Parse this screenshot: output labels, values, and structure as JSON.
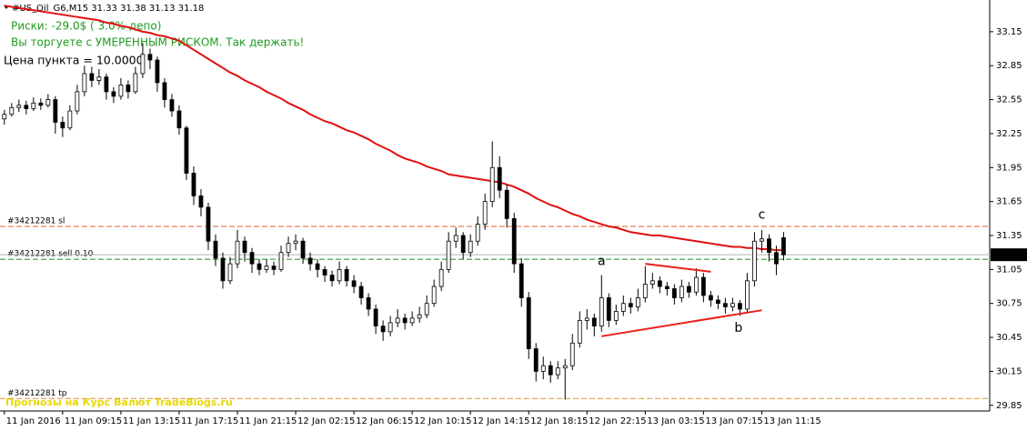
{
  "chart_data": {
    "type": "candlestick",
    "title": "#US_Oil_G6,M15  31.33 31.38 31.13 31.18",
    "risk_text": "Риски: -29.0$ ( 3.0% депо)",
    "risk_message": "Вы торгуете с УМЕРЕННЫМ РИСКОМ. Так держать!",
    "point_value_text": "Цена пункта = 10.0000",
    "watermark": "Прогнозы на Курс Валют TradeBlogs.ru",
    "ylim": [
      29.8,
      33.43
    ],
    "yticks": [
      33.15,
      32.85,
      32.55,
      32.25,
      31.95,
      31.65,
      31.35,
      31.05,
      30.75,
      30.45,
      30.15,
      29.85
    ],
    "xlim": [
      -0.6,
      135.3
    ],
    "xticks": [
      {
        "value": 0,
        "label": "11 Jan 2016"
      },
      {
        "value": 8,
        "label": "11 Jan 09:15"
      },
      {
        "value": 16,
        "label": "11 Jan 13:15"
      },
      {
        "value": 24,
        "label": "11 Jan 17:15"
      },
      {
        "value": 32,
        "label": "11 Jan 21:15"
      },
      {
        "value": 40,
        "label": "12 Jan 02:15"
      },
      {
        "value": 48,
        "label": "12 Jan 06:15"
      },
      {
        "value": 56,
        "label": "12 Jan 10:15"
      },
      {
        "value": 64,
        "label": "12 Jan 14:15"
      },
      {
        "value": 72,
        "label": "12 Jan 18:15"
      },
      {
        "value": 80,
        "label": "12 Jan 22:15"
      },
      {
        "value": 88,
        "label": "13 Jan 03:15"
      },
      {
        "value": 96,
        "label": "13 Jan 07:15"
      },
      {
        "value": 104,
        "label": "13 Jan 11:15"
      }
    ],
    "candles": [
      [
        32.38,
        32.46,
        32.33,
        32.42
      ],
      [
        32.42,
        32.52,
        32.4,
        32.48
      ],
      [
        32.48,
        32.55,
        32.44,
        32.5
      ],
      [
        32.5,
        32.54,
        32.42,
        32.47
      ],
      [
        32.47,
        32.57,
        32.45,
        32.52
      ],
      [
        32.52,
        32.56,
        32.46,
        32.5
      ],
      [
        32.5,
        32.6,
        32.48,
        32.55
      ],
      [
        32.55,
        32.58,
        32.25,
        32.35
      ],
      [
        32.35,
        32.4,
        32.22,
        32.3
      ],
      [
        32.3,
        32.5,
        32.28,
        32.45
      ],
      [
        32.45,
        32.68,
        32.42,
        32.62
      ],
      [
        32.62,
        32.85,
        32.58,
        32.78
      ],
      [
        32.78,
        32.84,
        32.66,
        32.72
      ],
      [
        32.72,
        32.82,
        32.68,
        32.75
      ],
      [
        32.75,
        32.78,
        32.55,
        32.62
      ],
      [
        32.62,
        32.66,
        32.52,
        32.58
      ],
      [
        32.58,
        32.74,
        32.55,
        32.68
      ],
      [
        32.68,
        32.72,
        32.56,
        32.62
      ],
      [
        32.62,
        32.84,
        32.6,
        32.78
      ],
      [
        32.78,
        33.05,
        32.74,
        32.95
      ],
      [
        32.95,
        33.0,
        32.82,
        32.9
      ],
      [
        32.9,
        32.93,
        32.62,
        32.7
      ],
      [
        32.7,
        32.74,
        32.48,
        32.55
      ],
      [
        32.55,
        32.6,
        32.4,
        32.45
      ],
      [
        32.45,
        32.5,
        32.24,
        32.3
      ],
      [
        32.3,
        32.32,
        31.84,
        31.9
      ],
      [
        31.9,
        31.96,
        31.62,
        31.7
      ],
      [
        31.7,
        31.76,
        31.52,
        31.6
      ],
      [
        31.6,
        31.64,
        31.22,
        31.3
      ],
      [
        31.3,
        31.36,
        31.08,
        31.15
      ],
      [
        31.15,
        31.2,
        30.88,
        30.95
      ],
      [
        30.95,
        31.16,
        30.92,
        31.1
      ],
      [
        31.1,
        31.4,
        31.06,
        31.3
      ],
      [
        31.3,
        31.34,
        31.12,
        31.2
      ],
      [
        31.2,
        31.24,
        31.02,
        31.1
      ],
      [
        31.1,
        31.14,
        31.0,
        31.05
      ],
      [
        31.05,
        31.14,
        31.02,
        31.08
      ],
      [
        31.08,
        31.12,
        31.0,
        31.05
      ],
      [
        31.05,
        31.26,
        31.03,
        31.2
      ],
      [
        31.2,
        31.34,
        31.16,
        31.28
      ],
      [
        31.28,
        31.36,
        31.22,
        31.3
      ],
      [
        31.3,
        31.33,
        31.1,
        31.15
      ],
      [
        31.15,
        31.2,
        31.04,
        31.1
      ],
      [
        31.1,
        31.14,
        30.98,
        31.05
      ],
      [
        31.05,
        31.08,
        30.94,
        31.0
      ],
      [
        31.0,
        31.04,
        30.9,
        30.95
      ],
      [
        30.95,
        31.12,
        30.92,
        31.05
      ],
      [
        31.05,
        31.08,
        30.9,
        30.95
      ],
      [
        30.95,
        31.0,
        30.84,
        30.9
      ],
      [
        30.9,
        30.94,
        30.74,
        30.8
      ],
      [
        30.8,
        30.84,
        30.64,
        30.7
      ],
      [
        30.7,
        30.74,
        30.48,
        30.55
      ],
      [
        30.55,
        30.6,
        30.42,
        30.5
      ],
      [
        30.5,
        30.64,
        30.46,
        30.58
      ],
      [
        30.58,
        30.7,
        30.54,
        30.62
      ],
      [
        30.62,
        30.66,
        30.52,
        30.58
      ],
      [
        30.58,
        30.68,
        30.55,
        30.62
      ],
      [
        30.62,
        30.72,
        30.58,
        30.65
      ],
      [
        30.65,
        30.82,
        30.62,
        30.75
      ],
      [
        30.75,
        30.96,
        30.72,
        30.9
      ],
      [
        30.9,
        31.12,
        30.86,
        31.05
      ],
      [
        31.05,
        31.38,
        31.02,
        31.3
      ],
      [
        31.3,
        31.42,
        31.24,
        31.35
      ],
      [
        31.35,
        31.38,
        31.14,
        31.2
      ],
      [
        31.2,
        31.36,
        31.16,
        31.3
      ],
      [
        31.3,
        31.52,
        31.26,
        31.45
      ],
      [
        31.45,
        31.72,
        31.4,
        31.65
      ],
      [
        31.65,
        32.18,
        31.6,
        31.95
      ],
      [
        31.95,
        32.05,
        31.68,
        31.75
      ],
      [
        31.75,
        31.8,
        31.42,
        31.5
      ],
      [
        31.5,
        31.55,
        31.02,
        31.1
      ],
      [
        31.1,
        31.15,
        30.72,
        30.8
      ],
      [
        30.8,
        30.85,
        30.26,
        30.35
      ],
      [
        30.35,
        30.4,
        30.06,
        30.15
      ],
      [
        30.15,
        30.28,
        30.08,
        30.2
      ],
      [
        30.2,
        30.24,
        30.05,
        30.12
      ],
      [
        30.12,
        30.24,
        30.08,
        30.18
      ],
      [
        30.18,
        30.26,
        29.9,
        30.2
      ],
      [
        30.2,
        30.48,
        30.16,
        30.4
      ],
      [
        30.4,
        30.68,
        30.36,
        30.6
      ],
      [
        30.6,
        30.7,
        30.52,
        30.62
      ],
      [
        30.62,
        30.66,
        30.46,
        30.55
      ],
      [
        30.55,
        31.0,
        30.5,
        30.8
      ],
      [
        30.8,
        30.84,
        30.54,
        30.6
      ],
      [
        30.6,
        30.74,
        30.56,
        30.68
      ],
      [
        30.68,
        30.82,
        30.64,
        30.75
      ],
      [
        30.75,
        30.8,
        30.66,
        30.72
      ],
      [
        30.72,
        30.88,
        30.68,
        30.8
      ],
      [
        30.8,
        31.08,
        30.76,
        30.92
      ],
      [
        30.92,
        31.02,
        30.88,
        30.95
      ],
      [
        30.95,
        30.99,
        30.84,
        30.9
      ],
      [
        30.9,
        30.94,
        30.82,
        30.88
      ],
      [
        30.88,
        30.92,
        30.74,
        30.8
      ],
      [
        30.8,
        30.96,
        30.76,
        30.9
      ],
      [
        30.9,
        30.94,
        30.8,
        30.85
      ],
      [
        30.85,
        31.06,
        30.82,
        30.98
      ],
      [
        30.98,
        31.02,
        30.76,
        30.82
      ],
      [
        30.82,
        30.86,
        30.72,
        30.78
      ],
      [
        30.78,
        30.82,
        30.7,
        30.75
      ],
      [
        30.75,
        30.8,
        30.66,
        30.72
      ],
      [
        30.72,
        30.8,
        30.68,
        30.75
      ],
      [
        30.75,
        30.78,
        30.64,
        30.7
      ],
      [
        30.7,
        31.02,
        30.66,
        30.95
      ],
      [
        30.95,
        31.38,
        30.9,
        31.3
      ],
      [
        31.3,
        31.4,
        31.2,
        31.32
      ],
      [
        31.32,
        31.36,
        31.12,
        31.2
      ],
      [
        31.2,
        31.26,
        31.0,
        31.1
      ],
      [
        31.33,
        31.38,
        31.13,
        31.18
      ]
    ],
    "moving_average": {
      "color": "#e01010",
      "values": [
        33.38,
        33.37,
        33.36,
        33.35,
        33.34,
        33.33,
        33.32,
        33.31,
        33.3,
        33.29,
        33.28,
        33.27,
        33.26,
        33.25,
        33.23,
        33.22,
        33.2,
        33.19,
        33.17,
        33.15,
        33.14,
        33.12,
        33.11,
        33.09,
        33.07,
        33.03,
        32.99,
        32.95,
        32.91,
        32.87,
        32.83,
        32.79,
        32.76,
        32.72,
        32.69,
        32.66,
        32.62,
        32.59,
        32.56,
        32.52,
        32.49,
        32.46,
        32.42,
        32.39,
        32.36,
        32.34,
        32.31,
        32.28,
        32.26,
        32.23,
        32.2,
        32.16,
        32.13,
        32.1,
        32.06,
        32.03,
        32.01,
        31.99,
        31.96,
        31.94,
        31.92,
        31.89,
        31.88,
        31.87,
        31.86,
        31.85,
        31.84,
        31.83,
        31.82,
        31.8,
        31.78,
        31.75,
        31.72,
        31.68,
        31.65,
        31.62,
        31.6,
        31.57,
        31.54,
        31.52,
        31.49,
        31.47,
        31.45,
        31.43,
        31.42,
        31.4,
        31.38,
        31.37,
        31.36,
        31.35,
        31.35,
        31.34,
        31.33,
        31.32,
        31.31,
        31.3,
        31.29,
        31.28,
        31.27,
        31.26,
        31.25,
        31.25,
        31.24,
        31.24,
        31.23,
        31.23,
        31.22,
        31.22
      ]
    },
    "levels": [
      {
        "label": "#34212281 sl",
        "value": 31.43,
        "color": "#e0602a"
      },
      {
        "label": "#34212281 sell 0.10",
        "value": 31.14,
        "color": "#1e8c1e"
      },
      {
        "label": "#34212281 tp",
        "value": 29.91,
        "color": "#e0902a"
      }
    ],
    "bid": {
      "value": 31.18,
      "color": "#b4b4b4"
    },
    "trendlines": [
      {
        "x": [
          88,
          97
        ],
        "y": [
          31.1,
          31.03
        ],
        "color": "#e8201a"
      },
      {
        "x": [
          82,
          104
        ],
        "y": [
          30.46,
          30.69
        ],
        "color": "#e8201a"
      }
    ],
    "annotations": [
      {
        "text": "a",
        "x": 82,
        "y": 31.12
      },
      {
        "text": "b",
        "x": 100.8,
        "y": 30.53
      },
      {
        "text": "c",
        "x": 104,
        "y": 31.53
      }
    ]
  }
}
